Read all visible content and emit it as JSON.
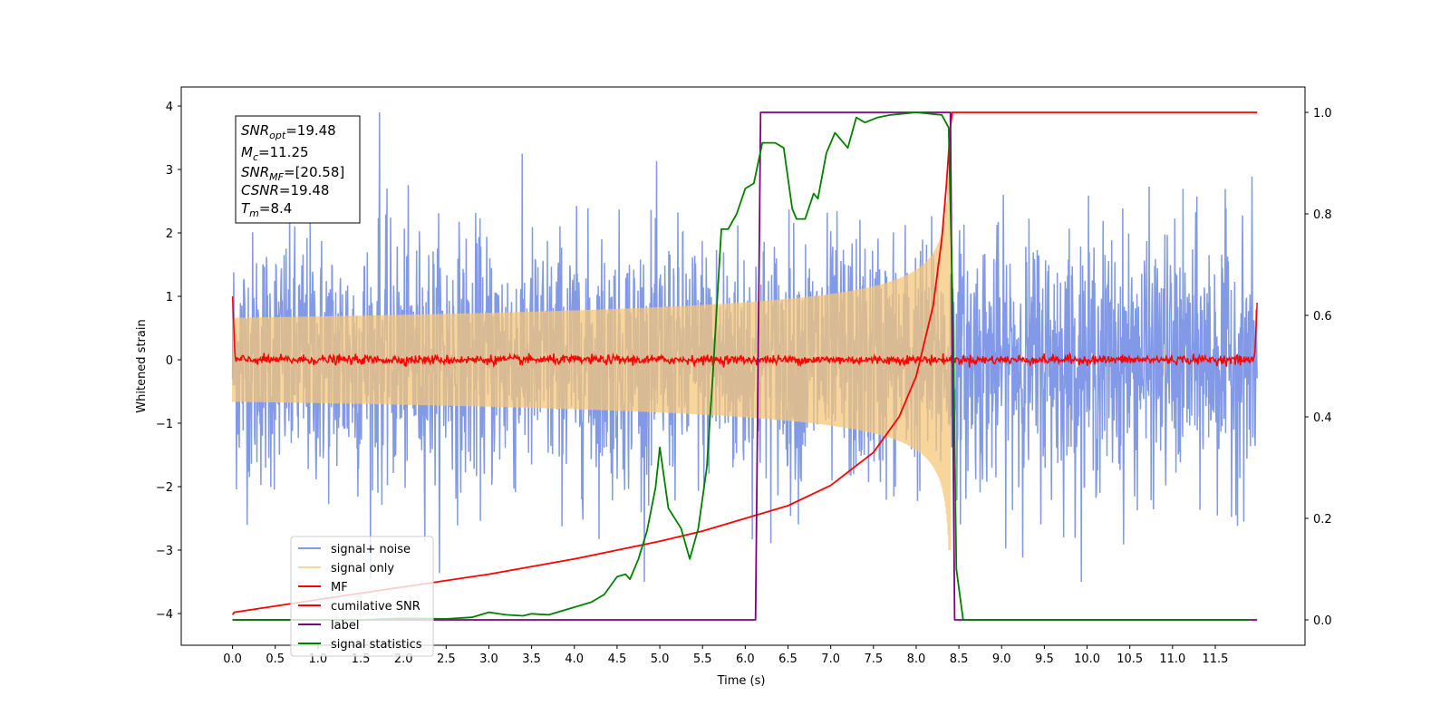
{
  "chart_data": {
    "type": "line",
    "title": "",
    "xlabel": "Time (s)",
    "ylabel": "Whitened strain",
    "xlim": [
      -0.6,
      12.55
    ],
    "ylim_left": [
      -4.5,
      4.3
    ],
    "ylim_right": [
      -0.05,
      1.05
    ],
    "x_ticks": [
      0.0,
      0.5,
      1.0,
      1.5,
      2.0,
      2.5,
      3.0,
      3.5,
      4.0,
      4.5,
      5.0,
      5.5,
      6.0,
      6.5,
      7.0,
      7.5,
      8.0,
      8.5,
      9.0,
      9.5,
      10.0,
      10.5,
      11.0,
      11.5
    ],
    "x_tick_labels": [
      "0.0",
      "0.5",
      "1.0",
      "1.5",
      "2.0",
      "2.5",
      "3.0",
      "3.5",
      "4.0",
      "4.5",
      "5.0",
      "5.5",
      "6.0",
      "6.5",
      "7.0",
      "7.5",
      "8.0",
      "8.5",
      "9.0",
      "9.5",
      "10.0",
      "10.5",
      "11.0",
      "11.5"
    ],
    "y_left_ticks": [
      -4,
      -3,
      -2,
      -1,
      0,
      1,
      2,
      3,
      4
    ],
    "y_left_tick_labels": [
      "−4",
      "−3",
      "−2",
      "−1",
      "0",
      "1",
      "2",
      "3",
      "4"
    ],
    "y_right_ticks": [
      0.0,
      0.2,
      0.4,
      0.6,
      0.8,
      1.0
    ],
    "y_right_tick_labels": [
      "0.0",
      "0.2",
      "0.4",
      "0.6",
      "0.8",
      "1.0"
    ],
    "grid": false,
    "legend_position": "lower-left",
    "annotation": {
      "snr_opt": {
        "sym": "SNR",
        "sub": "opt",
        "value": "=19.48"
      },
      "mc": {
        "sym": "M",
        "sub": "c",
        "value": "=11.25"
      },
      "snr_mf": {
        "sym": "SNR",
        "sub": "MF",
        "value": "=[20.58]"
      },
      "csnr": {
        "sym": "CSNR",
        "sub": "",
        "value": "=19.48"
      },
      "tm": {
        "sym": "T",
        "sub": "m",
        "value": "=8.4"
      }
    },
    "series": [
      {
        "name": "signal+ noise",
        "axis": "left",
        "color": "#7a94e6",
        "kind": "noise",
        "x_range": [
          0.0,
          11.99
        ],
        "amplitude": 1.6,
        "peak": 3.9
      },
      {
        "name": "signal only",
        "axis": "left",
        "color": "#f5c77a",
        "kind": "chirp",
        "x_range": [
          0.0,
          8.4
        ],
        "merger_amplitude": 3.0
      },
      {
        "name": "MF",
        "axis": "left",
        "color": "#ff0000",
        "kind": "noise",
        "x_range": [
          0.0,
          11.99
        ],
        "amplitude": 0.08,
        "edge_start": 1.0,
        "edge_end": 0.9
      },
      {
        "name": "cumilative SNR",
        "axis": "right",
        "color": "#ff0000",
        "kind": "curve",
        "points": [
          [
            0.0,
            0.01
          ],
          [
            0.02,
            0.015
          ],
          [
            1.0,
            0.04
          ],
          [
            2.0,
            0.065
          ],
          [
            3.0,
            0.09
          ],
          [
            4.0,
            0.12
          ],
          [
            5.0,
            0.155
          ],
          [
            5.5,
            0.175
          ],
          [
            6.0,
            0.2
          ],
          [
            6.5,
            0.225
          ],
          [
            7.0,
            0.265
          ],
          [
            7.5,
            0.33
          ],
          [
            7.8,
            0.4
          ],
          [
            8.0,
            0.48
          ],
          [
            8.2,
            0.62
          ],
          [
            8.3,
            0.75
          ],
          [
            8.35,
            0.85
          ],
          [
            8.4,
            0.97
          ],
          [
            8.42,
            1.0
          ],
          [
            11.99,
            1.0
          ]
        ]
      },
      {
        "name": "label",
        "axis": "right",
        "color": "#800080",
        "kind": "step",
        "points": [
          [
            0.0,
            0.0
          ],
          [
            6.12,
            0.0
          ],
          [
            6.18,
            1.0
          ],
          [
            8.4,
            1.0
          ],
          [
            8.45,
            0.0
          ],
          [
            11.99,
            0.0
          ]
        ]
      },
      {
        "name": "signal statistics",
        "axis": "right",
        "color": "#008000",
        "kind": "curve",
        "points": [
          [
            0.0,
            0.0
          ],
          [
            1.5,
            0.0
          ],
          [
            2.0,
            0.003
          ],
          [
            2.5,
            0.002
          ],
          [
            2.8,
            0.005
          ],
          [
            3.0,
            0.015
          ],
          [
            3.2,
            0.01
          ],
          [
            3.4,
            0.008
          ],
          [
            3.5,
            0.012
          ],
          [
            3.7,
            0.01
          ],
          [
            3.8,
            0.015
          ],
          [
            4.0,
            0.025
          ],
          [
            4.2,
            0.035
          ],
          [
            4.35,
            0.05
          ],
          [
            4.5,
            0.085
          ],
          [
            4.6,
            0.09
          ],
          [
            4.65,
            0.08
          ],
          [
            4.75,
            0.12
          ],
          [
            4.85,
            0.175
          ],
          [
            4.95,
            0.26
          ],
          [
            5.0,
            0.34
          ],
          [
            5.1,
            0.22
          ],
          [
            5.25,
            0.18
          ],
          [
            5.35,
            0.12
          ],
          [
            5.45,
            0.18
          ],
          [
            5.55,
            0.3
          ],
          [
            5.62,
            0.48
          ],
          [
            5.72,
            0.77
          ],
          [
            5.8,
            0.77
          ],
          [
            5.9,
            0.8
          ],
          [
            6.0,
            0.85
          ],
          [
            6.1,
            0.86
          ],
          [
            6.2,
            0.94
          ],
          [
            6.35,
            0.94
          ],
          [
            6.45,
            0.93
          ],
          [
            6.55,
            0.81
          ],
          [
            6.6,
            0.79
          ],
          [
            6.7,
            0.79
          ],
          [
            6.8,
            0.84
          ],
          [
            6.85,
            0.83
          ],
          [
            6.95,
            0.92
          ],
          [
            7.05,
            0.96
          ],
          [
            7.2,
            0.93
          ],
          [
            7.3,
            0.99
          ],
          [
            7.4,
            0.98
          ],
          [
            7.55,
            0.99
          ],
          [
            7.7,
            0.995
          ],
          [
            8.0,
            1.0
          ],
          [
            8.3,
            0.995
          ],
          [
            8.38,
            0.97
          ],
          [
            8.43,
            0.6
          ],
          [
            8.47,
            0.1
          ],
          [
            8.55,
            0.0
          ],
          [
            11.9,
            0.0
          ]
        ]
      }
    ]
  }
}
